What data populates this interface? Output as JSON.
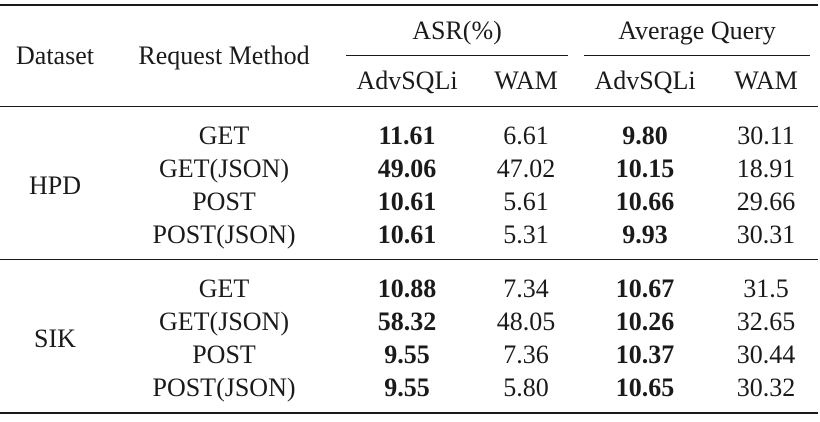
{
  "header": {
    "dataset": "Dataset",
    "request_method": "Request Method",
    "group_asr": "ASR(%)",
    "group_query": "Average Query",
    "sub": [
      "AdvSQLi",
      "WAM",
      "AdvSQLi",
      "WAM"
    ]
  },
  "groups": [
    {
      "dataset": "HPD",
      "rows": [
        {
          "method": "GET",
          "asr_adv": "11.61",
          "asr_wam": "6.61",
          "q_adv": "9.80",
          "q_wam": "30.11"
        },
        {
          "method": "GET(JSON)",
          "asr_adv": "49.06",
          "asr_wam": "47.02",
          "q_adv": "10.15",
          "q_wam": "18.91"
        },
        {
          "method": "POST",
          "asr_adv": "10.61",
          "asr_wam": "5.61",
          "q_adv": "10.66",
          "q_wam": "29.66"
        },
        {
          "method": "POST(JSON)",
          "asr_adv": "10.61",
          "asr_wam": "5.31",
          "q_adv": "9.93",
          "q_wam": "30.31"
        }
      ]
    },
    {
      "dataset": "SIK",
      "rows": [
        {
          "method": "GET",
          "asr_adv": "10.88",
          "asr_wam": "7.34",
          "q_adv": "10.67",
          "q_wam": "31.5"
        },
        {
          "method": "GET(JSON)",
          "asr_adv": "58.32",
          "asr_wam": "48.05",
          "q_adv": "10.26",
          "q_wam": "32.65"
        },
        {
          "method": "POST",
          "asr_adv": "9.55",
          "asr_wam": "7.36",
          "q_adv": "10.37",
          "q_wam": "30.44"
        },
        {
          "method": "POST(JSON)",
          "asr_adv": "9.55",
          "asr_wam": "5.80",
          "q_adv": "10.65",
          "q_wam": "30.32"
        }
      ]
    }
  ]
}
